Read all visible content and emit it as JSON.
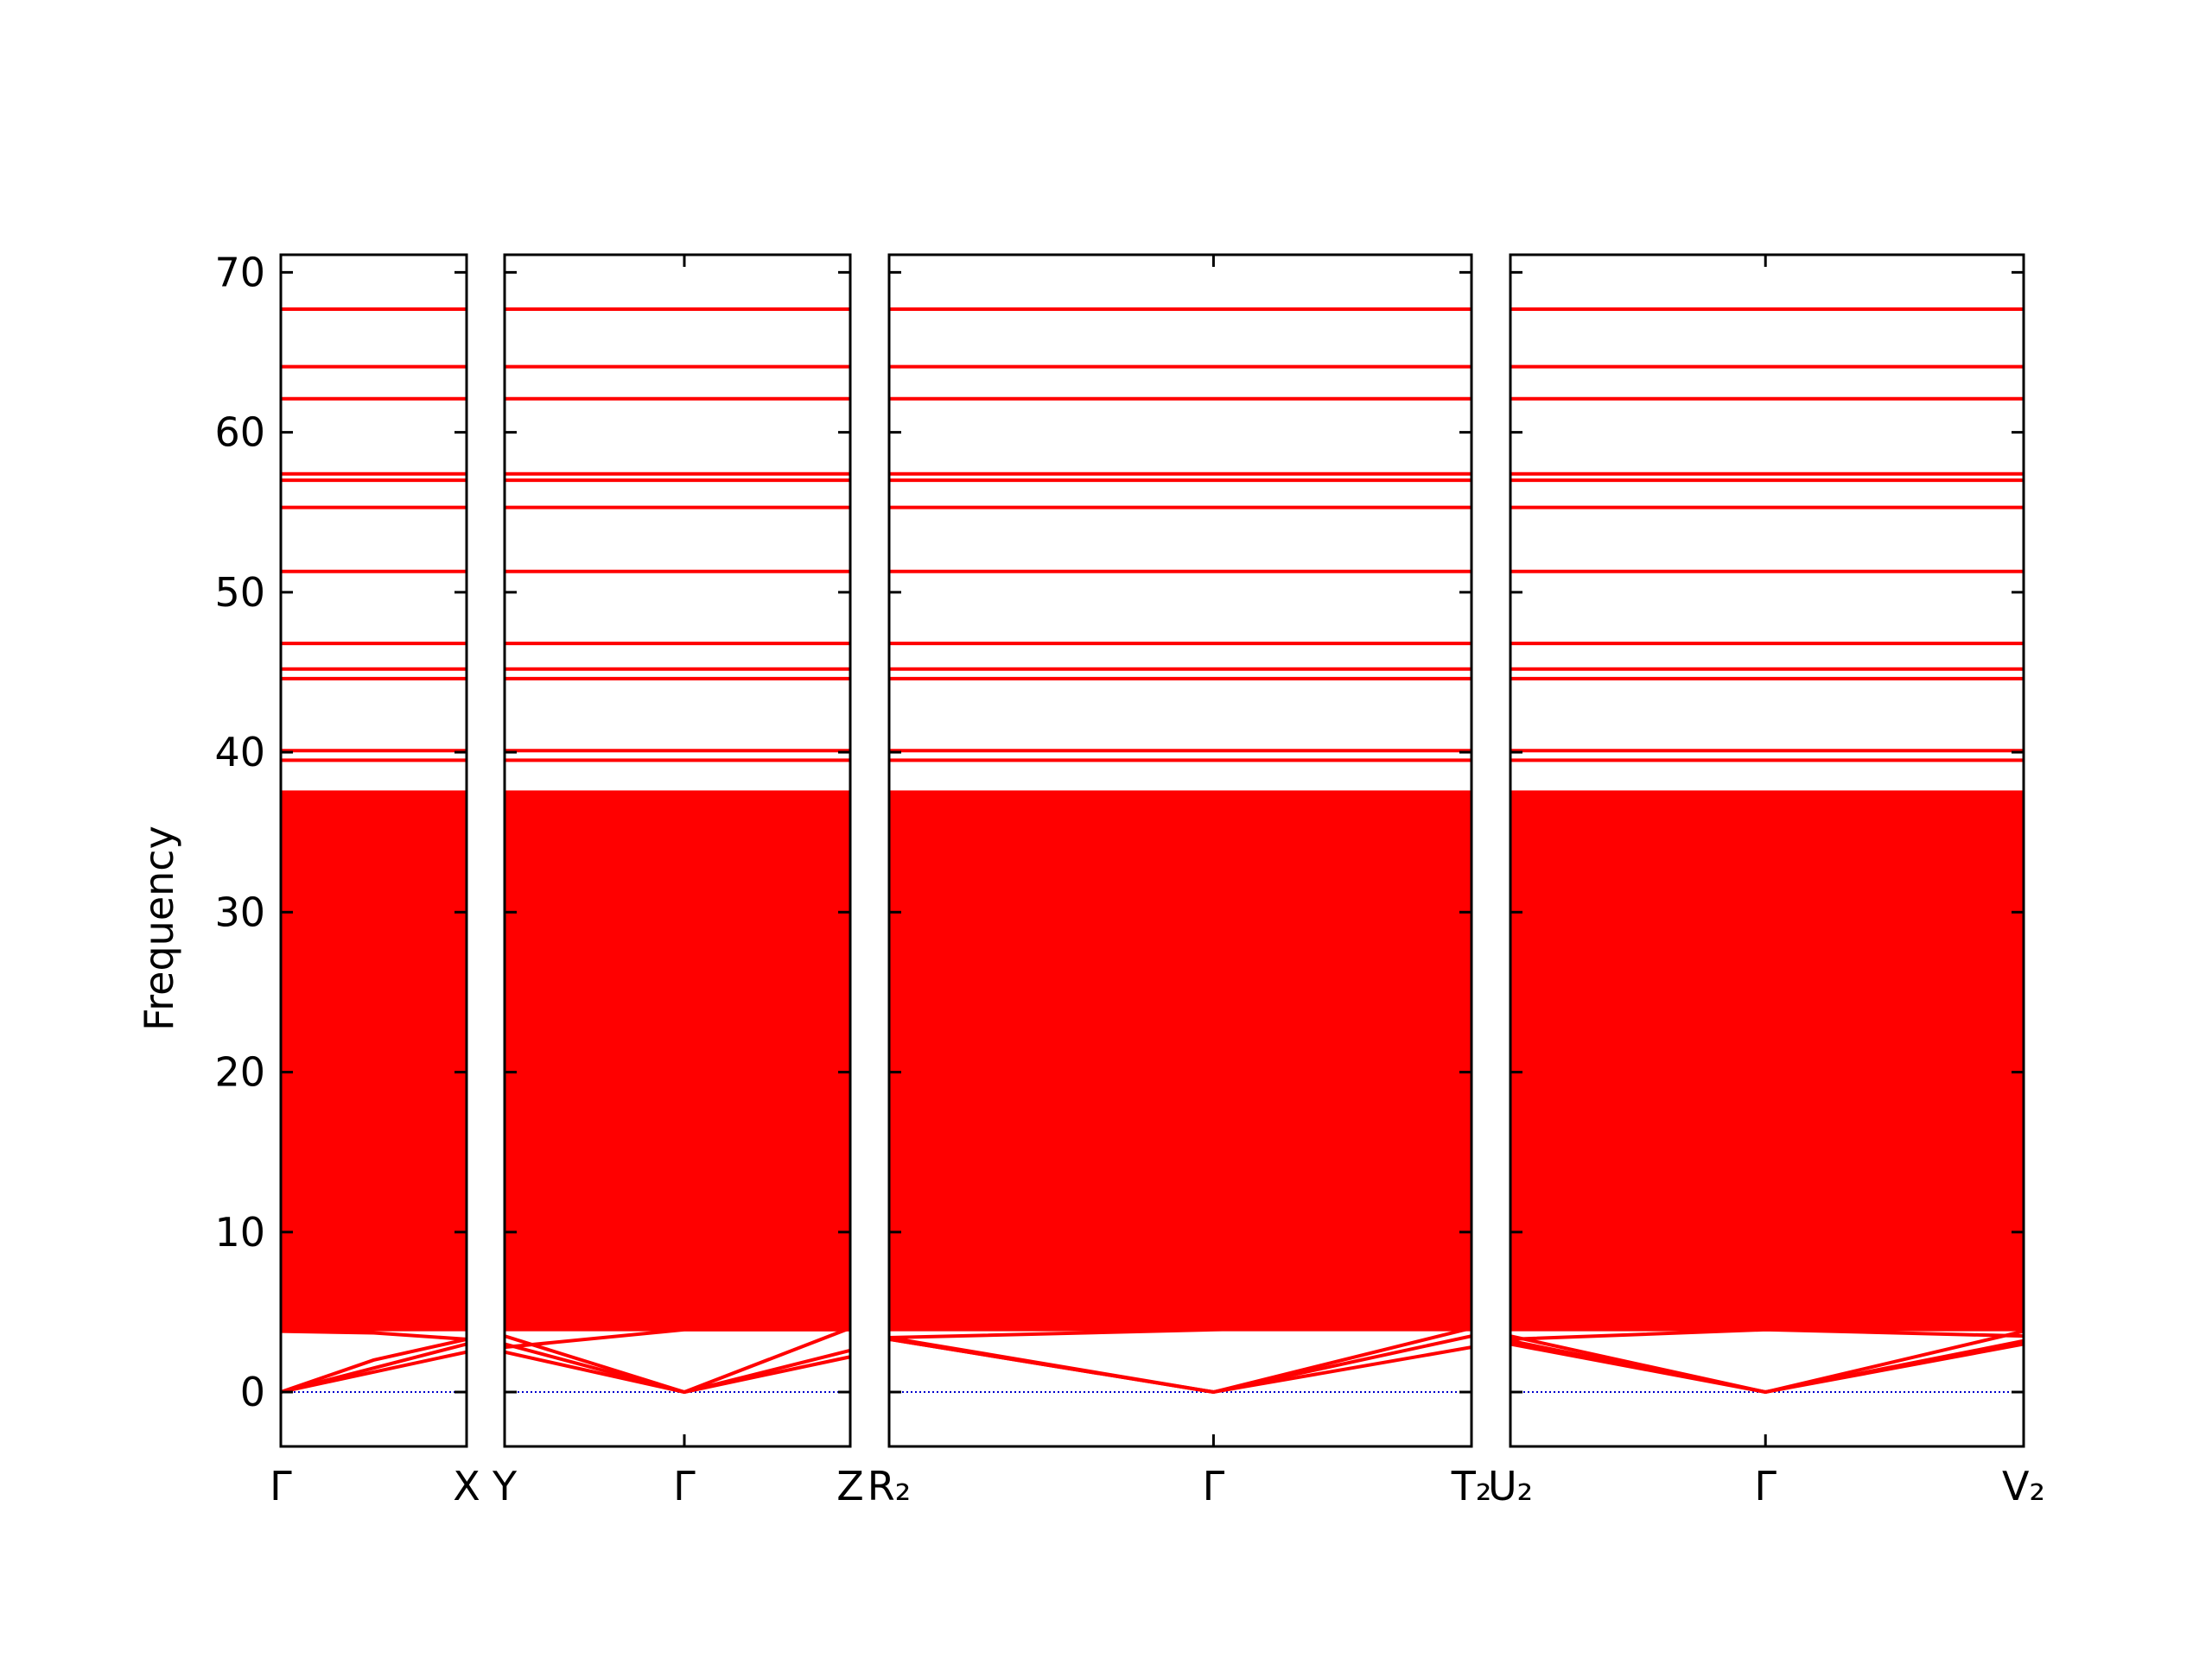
{
  "chart_data": {
    "type": "band",
    "ylabel": "Frequency",
    "color": "#ff0000",
    "zero_line_color": "#0000cc",
    "ylim": [
      -3.4,
      71.1
    ],
    "yticks": [
      0,
      10,
      20,
      30,
      40,
      50,
      60,
      70
    ],
    "zero_line": 0,
    "continuum": [
      3.8,
      37.6
    ],
    "flat_bands": [
      67.7,
      64.1,
      62.1,
      57.4,
      57.0,
      55.3,
      51.3,
      46.8,
      45.2,
      44.6,
      40.1,
      39.5,
      37.5,
      36.8,
      36.1
    ],
    "panels": [
      {
        "xlim": [
          0,
          1
        ],
        "xticks": [
          0,
          1
        ],
        "labels": [
          "Γ",
          "X"
        ],
        "bands": [
          {
            "x": [
              0,
              1
            ],
            "values": [
              0,
              2.5
            ]
          },
          {
            "x": [
              0,
              1
            ],
            "values": [
              0,
              3.0
            ]
          },
          {
            "x": [
              0,
              0.5,
              1
            ],
            "values": [
              0,
              2.0,
              3.3
            ]
          },
          {
            "x": [
              0,
              0.5,
              1
            ],
            "values": [
              3.8,
              3.7,
              3.3
            ]
          }
        ]
      },
      {
        "xlim": [
          0,
          1
        ],
        "xticks": [
          0,
          0.52,
          1
        ],
        "labels": [
          "Y",
          "Γ",
          "Z"
        ],
        "bands": [
          {
            "x": [
              0,
              0.52,
              1
            ],
            "values": [
              2.5,
              0,
              2.2
            ]
          },
          {
            "x": [
              0,
              0.52,
              1
            ],
            "values": [
              3.0,
              0,
              2.6
            ]
          },
          {
            "x": [
              0,
              0.52,
              1
            ],
            "values": [
              3.5,
              0,
              4.0
            ]
          },
          {
            "x": [
              0,
              0.52,
              1
            ],
            "values": [
              2.8,
              3.9,
              3.9
            ]
          }
        ]
      },
      {
        "xlim": [
          0,
          1
        ],
        "xticks": [
          0,
          0.557,
          1
        ],
        "labels": [
          "R₂",
          "Γ",
          "T₂"
        ],
        "bands": [
          {
            "x": [
              0,
              0.557,
              1
            ],
            "values": [
              3.3,
              0,
              2.8
            ]
          },
          {
            "x": [
              0,
              0.557,
              1
            ],
            "values": [
              3.3,
              0,
              3.5
            ]
          },
          {
            "x": [
              0,
              0.557,
              1
            ],
            "values": [
              3.4,
              0,
              4.0
            ]
          },
          {
            "x": [
              0,
              0.557,
              1
            ],
            "values": [
              3.4,
              3.9,
              4.3
            ]
          }
        ]
      },
      {
        "xlim": [
          0,
          1
        ],
        "xticks": [
          0,
          0.497,
          1
        ],
        "labels": [
          "U₂",
          "Γ",
          "V₂"
        ],
        "bands": [
          {
            "x": [
              0,
              0.497,
              1
            ],
            "values": [
              3.0,
              0,
              3.0
            ]
          },
          {
            "x": [
              0,
              0.497,
              1
            ],
            "values": [
              3.2,
              0,
              3.2
            ]
          },
          {
            "x": [
              0,
              0.497,
              1
            ],
            "values": [
              3.5,
              0,
              3.8
            ]
          },
          {
            "x": [
              0,
              0.497,
              1
            ],
            "values": [
              3.3,
              3.9,
              3.5
            ]
          }
        ]
      }
    ]
  }
}
